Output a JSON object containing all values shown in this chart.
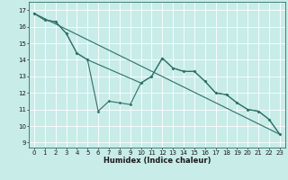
{
  "title": "",
  "xlabel": "Humidex (Indice chaleur)",
  "bg_color": "#c8ece8",
  "grid_color": "#ffffff",
  "line_color": "#2d7068",
  "xlim": [
    -0.5,
    23.5
  ],
  "ylim": [
    8.7,
    17.5
  ],
  "xticks": [
    0,
    1,
    2,
    3,
    4,
    5,
    6,
    7,
    8,
    9,
    10,
    11,
    12,
    13,
    14,
    15,
    16,
    17,
    18,
    19,
    20,
    21,
    22,
    23
  ],
  "yticks": [
    9,
    10,
    11,
    12,
    13,
    14,
    15,
    16,
    17
  ],
  "line1_x": [
    0,
    1,
    2,
    3,
    4,
    5,
    6,
    7,
    8,
    9,
    10,
    11,
    12,
    13,
    14,
    15,
    16,
    17,
    18,
    19,
    20,
    21,
    22,
    23
  ],
  "line1_y": [
    16.8,
    16.4,
    16.3,
    15.6,
    14.4,
    14.0,
    10.9,
    11.5,
    11.4,
    11.3,
    12.6,
    13.0,
    14.1,
    13.5,
    13.3,
    13.3,
    12.7,
    12.0,
    11.9,
    11.4,
    11.0,
    10.9,
    10.4,
    9.5
  ],
  "line2_x": [
    0,
    1,
    2,
    3,
    4,
    5,
    10,
    11,
    12,
    13,
    14,
    15,
    16,
    17,
    18,
    19,
    20,
    21,
    22,
    23
  ],
  "line2_y": [
    16.8,
    16.4,
    16.3,
    15.6,
    14.4,
    14.0,
    12.6,
    13.0,
    14.1,
    13.5,
    13.3,
    13.3,
    12.7,
    12.0,
    11.9,
    11.4,
    11.0,
    10.9,
    10.4,
    9.5
  ],
  "line3_x": [
    0,
    23
  ],
  "line3_y": [
    16.8,
    9.5
  ],
  "tick_fontsize": 5.0,
  "xlabel_fontsize": 6.0,
  "marker_size": 1.8,
  "linewidth": 0.8
}
